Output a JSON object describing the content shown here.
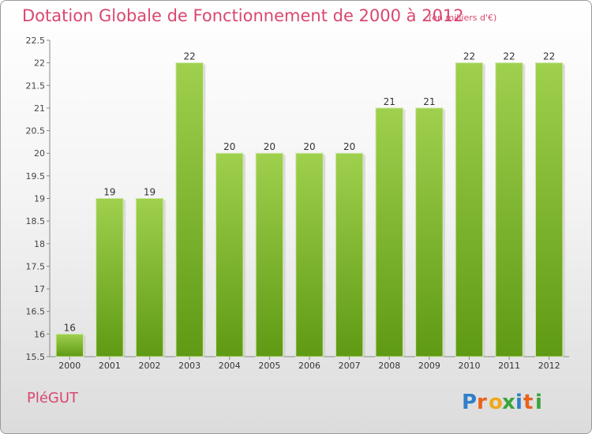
{
  "header": {
    "title": "Dotation Globale de Fonctionnement de 2000 à 2012",
    "subtitle": "(en milliers d'€)"
  },
  "footer": {
    "commune": "PléGUT",
    "logo_text": "Proxiti"
  },
  "colors": {
    "title": "#d9476f",
    "bar_top": "#9fd04e",
    "bar_bottom": "#5f9a14"
  },
  "chart_data": {
    "type": "bar",
    "categories": [
      "2000",
      "2001",
      "2002",
      "2003",
      "2004",
      "2005",
      "2006",
      "2007",
      "2008",
      "2009",
      "2010",
      "2011",
      "2012"
    ],
    "values": [
      16,
      19,
      19,
      22,
      20,
      20,
      20,
      20,
      21,
      21,
      22,
      22,
      22
    ],
    "data_labels": [
      "16",
      "19",
      "19",
      "22",
      "20",
      "20",
      "20",
      "20",
      "21",
      "21",
      "22",
      "22",
      "22"
    ],
    "y_ticks": [
      "15.5",
      "16",
      "16.5",
      "17",
      "17.5",
      "18",
      "18.5",
      "19",
      "19.5",
      "20",
      "20.5",
      "21",
      "21.5",
      "22",
      "22.5"
    ],
    "ylim": [
      15.5,
      22.5
    ],
    "grid": false,
    "legend": "none"
  }
}
